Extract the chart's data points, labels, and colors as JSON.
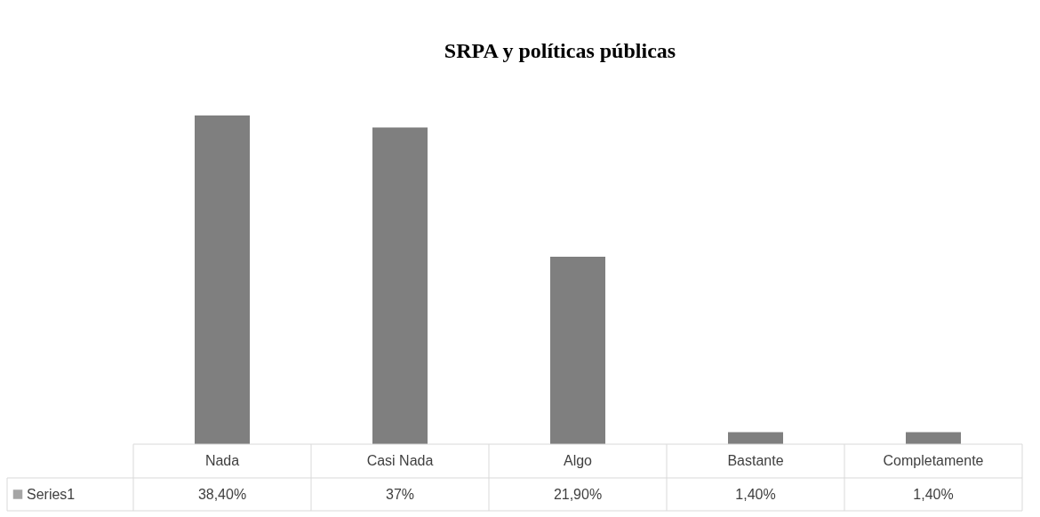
{
  "chart_data": {
    "type": "bar",
    "title": "SRPA y políticas públicas",
    "categories": [
      "Nada",
      "Casi Nada",
      "Algo",
      "Bastante",
      "Completamente"
    ],
    "series": [
      {
        "name": "Series1",
        "color": "#7f7f7f",
        "values": [
          38.4,
          37,
          21.9,
          1.4,
          1.4
        ],
        "value_labels": [
          "38,40%",
          "37%",
          "21,90%",
          "1,40%",
          "1,40%"
        ]
      }
    ]
  }
}
